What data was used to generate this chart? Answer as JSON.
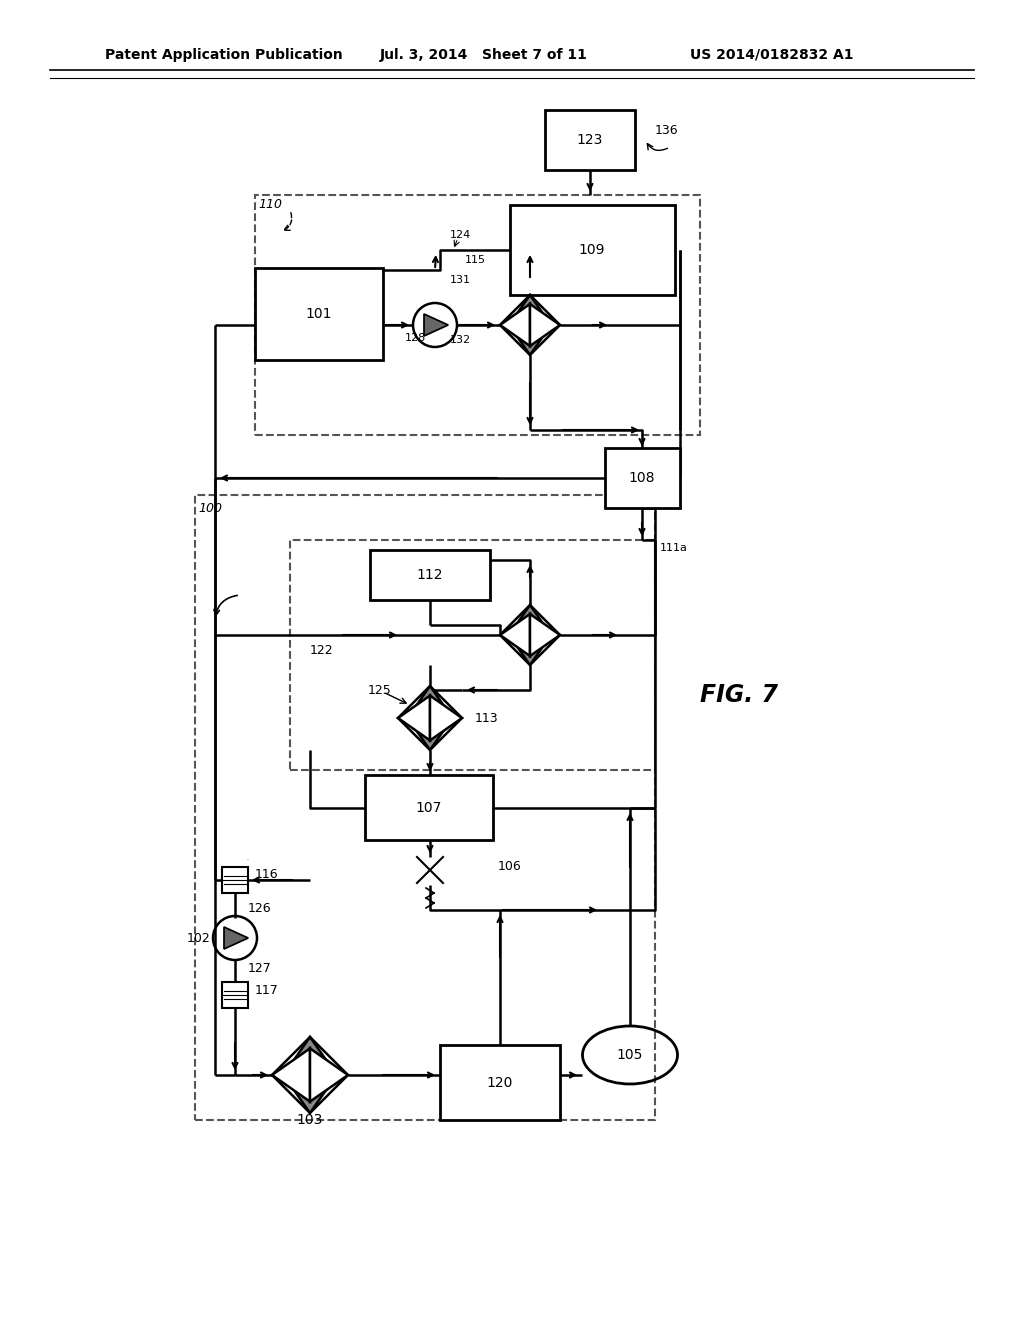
{
  "title_left": "Patent Application Publication",
  "title_mid": "Jul. 3, 2014   Sheet 7 of 11",
  "title_right": "US 2014/0182832 A1",
  "fig_label": "FIG. 7",
  "bg_color": "#ffffff"
}
